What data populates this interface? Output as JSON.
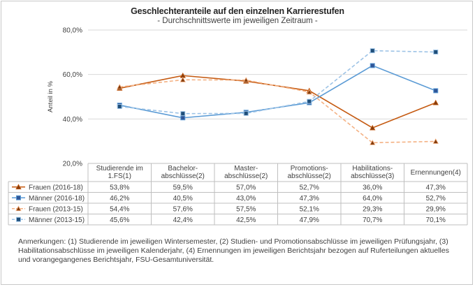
{
  "chart_data": {
    "type": "line",
    "title": "Geschlechteranteile auf den einzelnen Karrierestufen",
    "subtitle": "- Durchschnittswerte im jeweiligen Zeitraum -",
    "ylabel": "Anteil in %",
    "ylim": [
      20,
      80
    ],
    "ytick_labels": [
      "80,0%",
      "60,0%",
      "40,0%",
      "20,0%"
    ],
    "yticks": [
      80,
      60,
      40,
      20
    ],
    "categories": [
      [
        "Studierende im",
        "1.FS(1)"
      ],
      [
        "Bachelor-",
        "abschlüsse(2)"
      ],
      [
        "Master-",
        "abschlüsse(2)"
      ],
      [
        "Promotions-",
        "abschlüsse(2)"
      ],
      [
        "Habilitations-",
        "abschlüsse(3)"
      ],
      [
        "Ernennungen(4)"
      ]
    ],
    "series": [
      {
        "name": "Frauen (2016-18)",
        "color": "#c55a11",
        "dashed": false,
        "marker": "triangle",
        "values": [
          53.8,
          59.5,
          57.0,
          52.7,
          36.0,
          47.3
        ],
        "labels": [
          "53,8%",
          "59,5%",
          "57,0%",
          "52,7%",
          "36,0%",
          "47,3%"
        ]
      },
      {
        "name": "Männer (2016-18)",
        "color": "#5b9bd5",
        "dashed": false,
        "marker": "square",
        "values": [
          46.2,
          40.5,
          43.0,
          47.3,
          64.0,
          52.7
        ],
        "labels": [
          "46,2%",
          "40,5%",
          "43,0%",
          "47,3%",
          "64,0%",
          "52,7%"
        ]
      },
      {
        "name": "Frauen (2013-15)",
        "color": "#f4b183",
        "dashed": true,
        "marker": "triangle",
        "values": [
          54.4,
          57.6,
          57.5,
          52.1,
          29.3,
          29.9
        ],
        "labels": [
          "54,4%",
          "57,6%",
          "57,5%",
          "52,1%",
          "29,3%",
          "29,9%"
        ]
      },
      {
        "name": "Männer (2013-15)",
        "color": "#9dc3e6",
        "dashed": true,
        "marker": "square",
        "values": [
          45.6,
          42.4,
          42.5,
          47.9,
          70.7,
          70.1
        ],
        "labels": [
          "45,6%",
          "42,4%",
          "42,5%",
          "47,9%",
          "70,7%",
          "70,1%"
        ]
      }
    ],
    "grid": true,
    "legend_placement": "data-table"
  },
  "note": "Anmerkungen: (1) Studierende im jeweiligen Wintersemester, (2) Studien- und Promotionsabschlüsse im jeweiligen Prüfungsjahr, (3) Habilitationsabschlüsse im jeweiligen Kalenderjahr, (4) Ernennungen im jeweiligen Berichtsjahr bezogen auf Ruferteilungen aktuelles und vorangegangenes Berichtsjahr, FSU-Gesamtuniversität."
}
